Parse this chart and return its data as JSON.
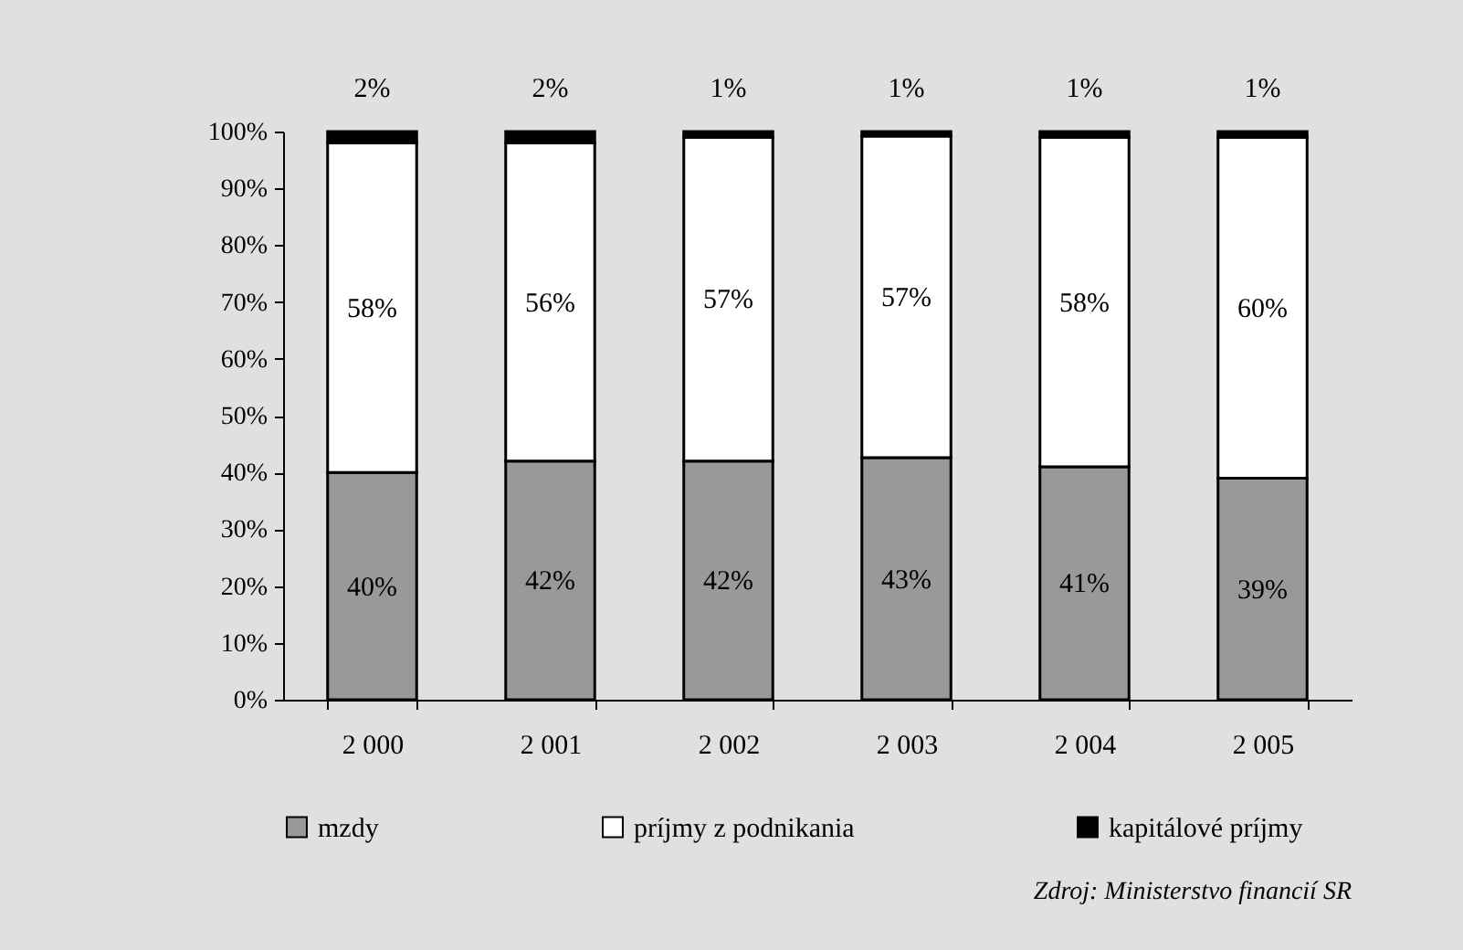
{
  "chart_data": {
    "type": "bar",
    "stacked": true,
    "categories": [
      "2 000",
      "2 001",
      "2 002",
      "2 003",
      "2 004",
      "2 005"
    ],
    "series": [
      {
        "name": "mzdy",
        "color": "#999999",
        "values": [
          40,
          42,
          42,
          42.6,
          41,
          39
        ],
        "value_labels": [
          "40%",
          "42%",
          "42%",
          "43%",
          "41%",
          "39%"
        ]
      },
      {
        "name": "príjmy z podnikania",
        "color": "#ffffff",
        "values": [
          58,
          56,
          57,
          56.6,
          58,
          60
        ],
        "value_labels": [
          "58%",
          "56%",
          "57%",
          "57%",
          "58%",
          "60%"
        ]
      },
      {
        "name": "kapitálové príjmy",
        "color": "#000000",
        "values": [
          2,
          2,
          1,
          0.8,
          1,
          1
        ],
        "value_labels": [
          "2%",
          "2%",
          "1%",
          "1%",
          "1%",
          "1%"
        ]
      }
    ],
    "ylim": [
      0,
      100
    ],
    "yticks": [
      {
        "value": 0,
        "label": "0%"
      },
      {
        "value": 10,
        "label": "10%"
      },
      {
        "value": 20,
        "label": "20%"
      },
      {
        "value": 30,
        "label": "30%"
      },
      {
        "value": 40,
        "label": "40%"
      },
      {
        "value": 50,
        "label": "50%"
      },
      {
        "value": 60,
        "label": "60%"
      },
      {
        "value": 70,
        "label": "70%"
      },
      {
        "value": 80,
        "label": "80%"
      },
      {
        "value": 90,
        "label": "90%"
      },
      {
        "value": 100,
        "label": "100%"
      }
    ],
    "legend": "bottom",
    "annotations": [
      "Zdroj: Ministerstvo financií SR"
    ]
  }
}
